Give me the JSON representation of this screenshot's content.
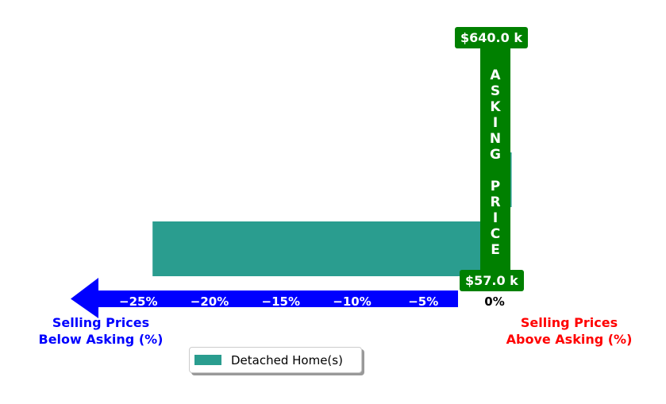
{
  "chart_data": {
    "type": "bar",
    "orientation": "horizontal",
    "series": [
      {
        "name": "Detached Home(s)",
        "color": "#2a9d8f",
        "values": [
          -0.5,
          1.2,
          -24
        ]
      }
    ],
    "xlim": [
      -27,
      3
    ],
    "ticks": [
      {
        "value": -25,
        "label": "−25%"
      },
      {
        "value": -20,
        "label": "−20%"
      },
      {
        "value": -15,
        "label": "−15%"
      },
      {
        "value": -10,
        "label": "−10%"
      },
      {
        "value": -5,
        "label": "−5%"
      },
      {
        "value": 0,
        "label": "0%"
      }
    ],
    "asking_price": {
      "letters": [
        "A",
        "S",
        "K",
        "I",
        "N",
        "G",
        "",
        "P",
        "R",
        "I",
        "C",
        "E"
      ],
      "high_label": "$640.0 k",
      "low_label": "$57.0 k",
      "color": "#008000"
    },
    "below_label": [
      "Selling Prices",
      "Below Asking (%)"
    ],
    "above_label": [
      "Selling Prices",
      "Above Asking (%)"
    ],
    "below_color": "#0000ff",
    "above_color": "#ff0000",
    "arrow_color": "#0000ff",
    "legend": {
      "label": "Detached Home(s)",
      "color": "#2a9d8f",
      "placement": "bottom-center"
    }
  }
}
